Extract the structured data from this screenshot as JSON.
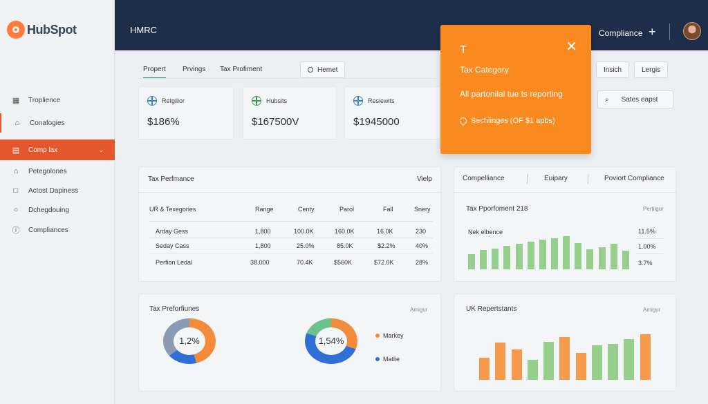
{
  "brand": {
    "logo_text": "HubSpot"
  },
  "header": {
    "title": "HMRC",
    "compliance_label": "Compliance",
    "plus": "+"
  },
  "sidebar": {
    "items": [
      {
        "label": "Troplience",
        "icon": "building-icon"
      },
      {
        "label": "Conafogies",
        "icon": "bank-icon"
      },
      {
        "label": "Comp lax",
        "icon": "wallet-icon",
        "active": true
      },
      {
        "label": "Petegolones",
        "icon": "bank-icon"
      },
      {
        "label": "Actost Dapiness",
        "icon": "lock-icon"
      },
      {
        "label": "Dchegdouing",
        "icon": "chat-icon"
      },
      {
        "label": "Compliances",
        "icon": "info-icon"
      }
    ]
  },
  "tabs": [
    "Propert",
    "Prvings",
    "Tax Profiment"
  ],
  "toolbar": {
    "hemet_label": "Hemet",
    "insich_label": "Insich",
    "lergis_label": "Lergis",
    "sates_label": "Sates eapst"
  },
  "kpis": [
    {
      "label": "Retgilior",
      "value": "$186%"
    },
    {
      "label": "Hubsits",
      "value": "$167500V"
    },
    {
      "label": "Resiewits",
      "value": "$1945000"
    }
  ],
  "popup": {
    "title": "T",
    "category": "Tax Category",
    "description": "All partonilal tue ts reporting",
    "location": "Sechlinges (OF $1 apbs)"
  },
  "perf_table": {
    "title": "Tax Perfmance",
    "action": "Vielp",
    "headers": [
      "UR & Texegories",
      "Range",
      "Centy",
      "Parol",
      "Fall",
      "Snery"
    ],
    "rows": [
      [
        "Arday Gess",
        "1,800",
        "100.0K",
        "160.0K",
        "16.0K",
        "230"
      ],
      [
        "Seday Cass",
        "1,800",
        "25.0%",
        "85.0K",
        "$2.2%",
        "40%"
      ],
      [
        "Perfion Ledal",
        "38,000",
        "70.4K",
        "$560K",
        "$72.0K",
        "28%"
      ]
    ]
  },
  "compliance_panel": {
    "tabs": [
      "Compelliance",
      "Euipary",
      "Poviort Compliance"
    ],
    "subtitle": "Tax Pporfoment 218",
    "aside": "Pertiigur",
    "row_label": "Nek elbence",
    "stats": [
      "11.5%",
      "1.00%",
      "3.7%"
    ]
  },
  "donut_panel": {
    "title": "Tax Preforfiunes",
    "aside": "Amigur",
    "donut1": {
      "label": "1,2%",
      "orange": 0.45,
      "blue": 0.2,
      "slate": 0.35
    },
    "donut2": {
      "label": "1,54%",
      "orange": 0.3,
      "blue": 0.5,
      "green": 0.2
    },
    "legend": [
      {
        "label": "Markey",
        "color": "#f28c3a"
      },
      {
        "label": "Matlie",
        "color": "#2f6fd6"
      }
    ]
  },
  "uk_panel": {
    "title": "UK Repertstants",
    "aside": "Amigur",
    "bars": [
      {
        "color": "orange",
        "value": 0.38
      },
      {
        "color": "orange",
        "value": 0.64
      },
      {
        "color": "orange",
        "value": 0.52
      },
      {
        "color": "green",
        "value": 0.34
      },
      {
        "color": "green",
        "value": 0.66
      },
      {
        "color": "orange",
        "value": 0.74
      },
      {
        "color": "orange",
        "value": 0.47
      },
      {
        "color": "green",
        "value": 0.59
      },
      {
        "color": "green",
        "value": 0.62
      },
      {
        "color": "green",
        "value": 0.7
      },
      {
        "color": "orange",
        "value": 0.78
      }
    ]
  },
  "compliance_bars": [
    0.28,
    0.35,
    0.38,
    0.43,
    0.46,
    0.5,
    0.54,
    0.56,
    0.6,
    0.48,
    0.36,
    0.4,
    0.46,
    0.34
  ]
}
